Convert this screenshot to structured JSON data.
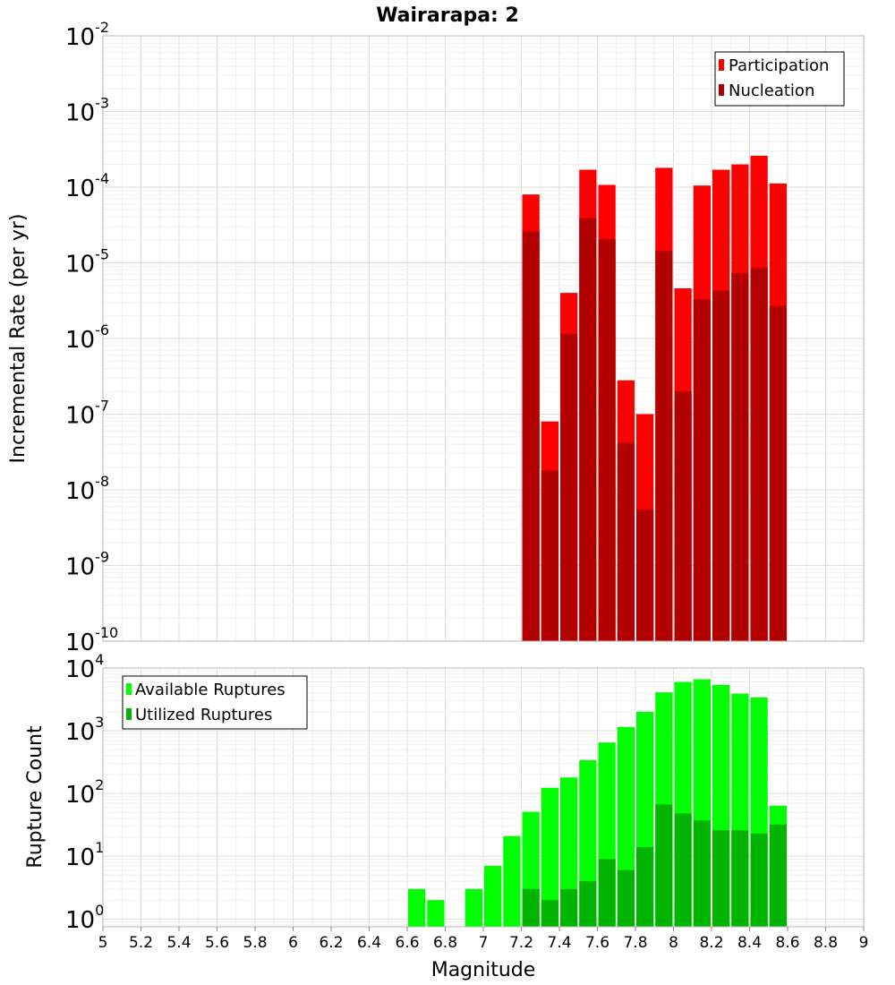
{
  "chart_data": [
    {
      "type": "bar",
      "title": "Wairarapa: 2",
      "xlabel": "",
      "ylabel": "Incremental Rate (per yr)",
      "yscale": "log",
      "ylim": [
        1e-10,
        0.01
      ],
      "xlim": [
        5,
        9
      ],
      "grid": true,
      "legend_position": "top-right",
      "y_tick_labels": [
        {
          "base": "10",
          "exp": "-10"
        },
        {
          "base": "10",
          "exp": "-9"
        },
        {
          "base": "10",
          "exp": "-8"
        },
        {
          "base": "10",
          "exp": "-7"
        },
        {
          "base": "10",
          "exp": "-6"
        },
        {
          "base": "10",
          "exp": "-5"
        },
        {
          "base": "10",
          "exp": "-4"
        },
        {
          "base": "10",
          "exp": "-3"
        },
        {
          "base": "10",
          "exp": "-2"
        }
      ],
      "x": [
        7.25,
        7.35,
        7.45,
        7.55,
        7.65,
        7.75,
        7.85,
        7.95,
        8.05,
        8.15,
        8.25,
        8.35,
        8.45,
        8.55
      ],
      "series": [
        {
          "name": "Participation",
          "color": "#ff0000",
          "values": [
            8e-05,
            8e-08,
            4e-06,
            0.00017,
            0.000107,
            2.8e-07,
            1e-07,
            0.00018,
            4.6e-06,
            0.000105,
            0.00017,
            0.0002,
            0.00026,
            0.000112
          ]
        },
        {
          "name": "Nucleation",
          "color": "#b20000",
          "values": [
            2.6e-05,
            1.8e-08,
            1.15e-06,
            3.9e-05,
            2.05e-05,
            4.2e-08,
            5.5e-09,
            1.45e-05,
            2e-07,
            3.3e-06,
            4.3e-06,
            7.3e-06,
            8.6e-06,
            2.7e-06
          ]
        }
      ]
    },
    {
      "type": "bar",
      "title": "",
      "xlabel": "Magnitude",
      "ylabel": "Rupture Count",
      "yscale": "log",
      "ylim": [
        0.75,
        10000
      ],
      "xlim": [
        5,
        9
      ],
      "grid": true,
      "legend_position": "top-left",
      "x_ticks": [
        "5",
        "5.2",
        "5.4",
        "5.6",
        "5.8",
        "6",
        "6.2",
        "6.4",
        "6.6",
        "6.8",
        "7",
        "7.2",
        "7.4",
        "7.6",
        "7.8",
        "8",
        "8.2",
        "8.4",
        "8.6",
        "8.8",
        "9"
      ],
      "y_tick_labels": [
        {
          "base": "10",
          "exp": "0"
        },
        {
          "base": "10",
          "exp": "1"
        },
        {
          "base": "10",
          "exp": "2"
        },
        {
          "base": "10",
          "exp": "3"
        },
        {
          "base": "10",
          "exp": "4"
        }
      ],
      "x": [
        6.65,
        6.75,
        6.95,
        7.05,
        7.15,
        7.25,
        7.35,
        7.45,
        7.55,
        7.65,
        7.75,
        7.85,
        7.95,
        8.05,
        8.15,
        8.25,
        8.35,
        8.45,
        8.55
      ],
      "series": [
        {
          "name": "Available Ruptures",
          "color": "#00ff00",
          "values": [
            3,
            2,
            3,
            7,
            21,
            51,
            123,
            180,
            340,
            650,
            1150,
            2000,
            4100,
            6000,
            6600,
            5400,
            3900,
            3400,
            64
          ]
        },
        {
          "name": "Utilized Ruptures",
          "color": "#00b400",
          "values": [
            null,
            null,
            null,
            null,
            null,
            3,
            2,
            3,
            4,
            9,
            6,
            14,
            67,
            48,
            37,
            26,
            26,
            23,
            32
          ]
        }
      ]
    }
  ]
}
